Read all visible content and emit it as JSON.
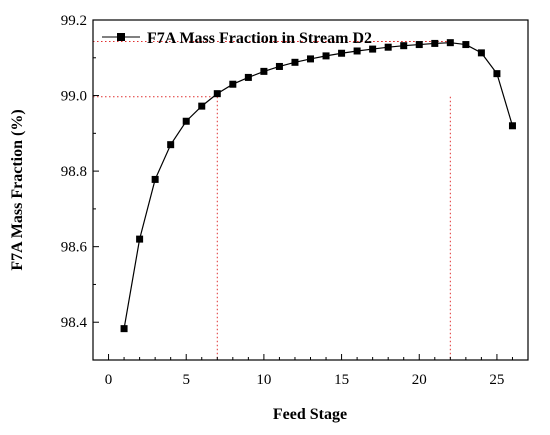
{
  "chart_data": {
    "type": "line",
    "title": "",
    "xlabel": "Feed Stage",
    "ylabel": "F7A Mass Fraction (%)",
    "xlim": [
      -1,
      27
    ],
    "ylim": [
      98.3,
      99.2
    ],
    "xticks": [
      0,
      5,
      10,
      15,
      20,
      25
    ],
    "yticks": [
      98.4,
      98.6,
      98.8,
      99.0,
      99.2
    ],
    "x_tick_labels": [
      "0",
      "5",
      "10",
      "15",
      "20",
      "25"
    ],
    "y_tick_labels": [
      "98.4",
      "98.6",
      "98.8",
      "99.0",
      "99.2"
    ],
    "legend_position": "top-left",
    "grid": false,
    "series": [
      {
        "name": "F7A Mass Fraction in Stream D2",
        "color": "#000000",
        "marker": "square",
        "x": [
          1,
          2,
          3,
          4,
          5,
          6,
          7,
          8,
          9,
          10,
          11,
          12,
          13,
          14,
          15,
          16,
          17,
          18,
          19,
          20,
          21,
          22,
          23,
          24,
          25,
          26
        ],
        "y": [
          98.383,
          98.62,
          98.778,
          98.87,
          98.932,
          98.972,
          99.005,
          99.03,
          99.048,
          99.064,
          99.077,
          99.088,
          99.097,
          99.105,
          99.112,
          99.118,
          99.123,
          99.128,
          99.132,
          99.135,
          99.138,
          99.14,
          99.135,
          99.113,
          99.058,
          98.92
        ]
      }
    ],
    "reference_lines": {
      "color": "#e03030",
      "style": "dotted",
      "horizontal_y": [
        98.997,
        99.143
      ],
      "vertical_x": [
        7,
        22
      ]
    }
  }
}
